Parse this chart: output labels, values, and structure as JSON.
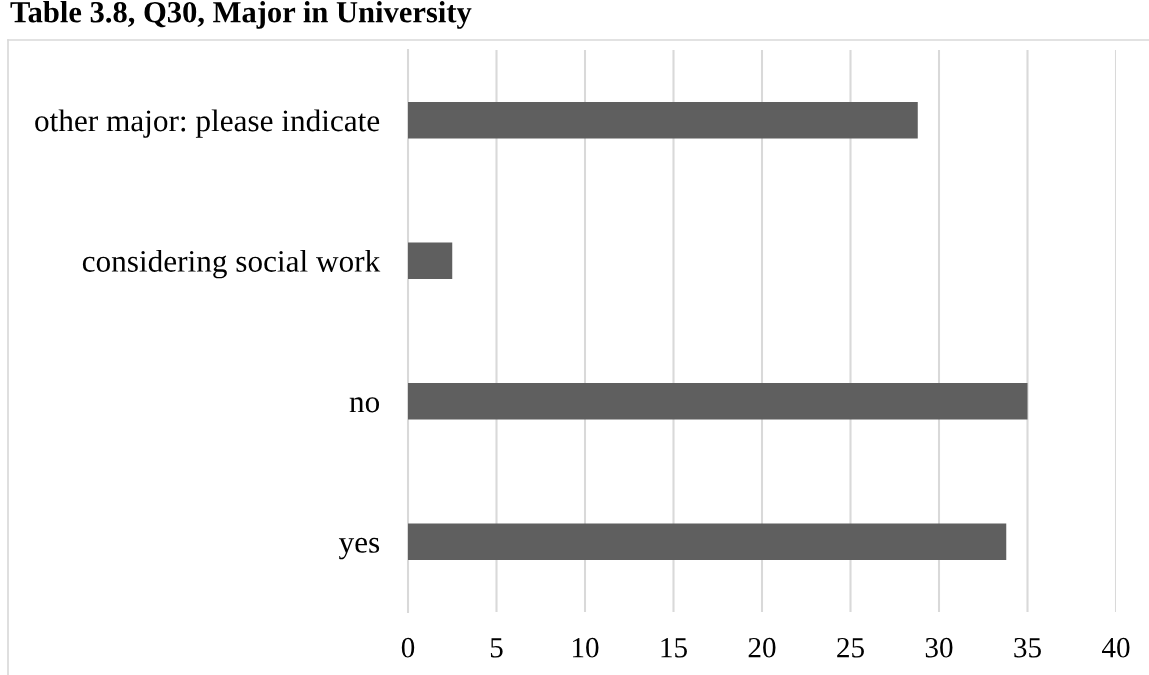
{
  "chart_data": {
    "type": "bar",
    "orientation": "horizontal",
    "title": "Table 3.8, Q30, Major in University",
    "categories": [
      "other major: please indicate",
      "considering social work",
      "no",
      "yes"
    ],
    "values": [
      28.8,
      2.5,
      35,
      33.8
    ],
    "color": "#5f5f5f",
    "xlim": [
      0,
      40
    ],
    "xticks": [
      0,
      5,
      10,
      15,
      20,
      25,
      30,
      35,
      40
    ],
    "grid": "x",
    "legend": false
  }
}
